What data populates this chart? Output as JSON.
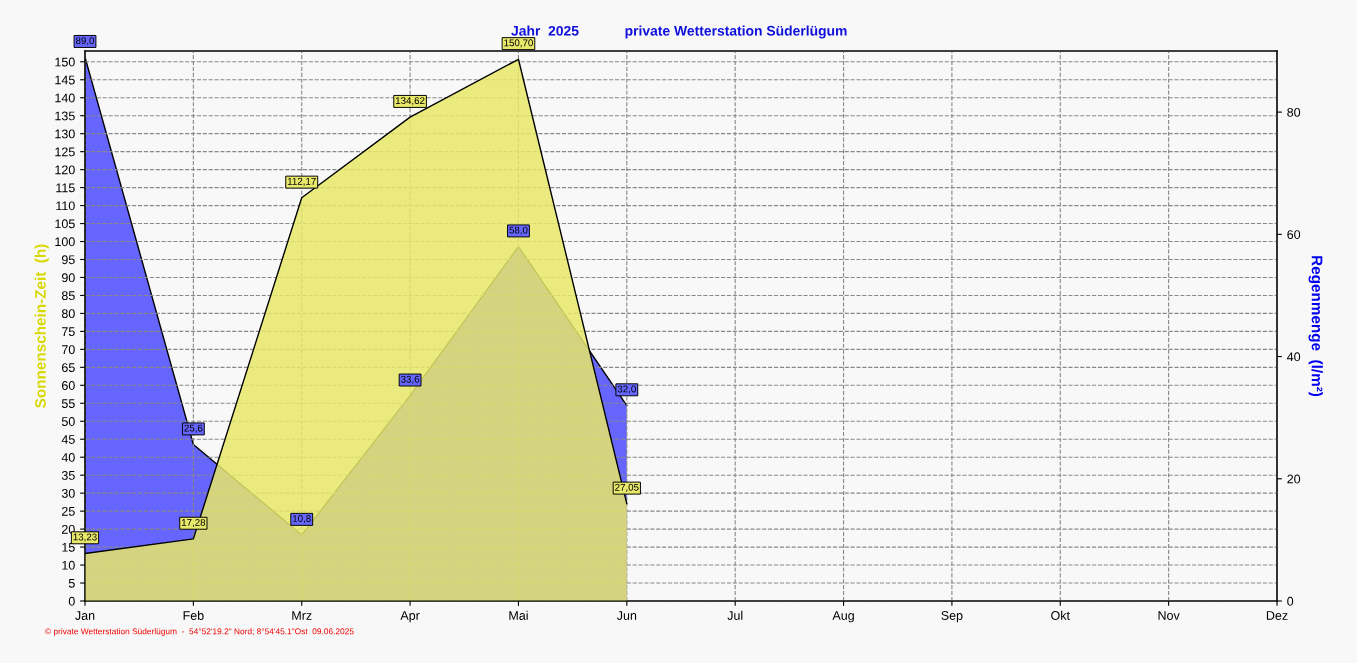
{
  "chart_data": {
    "type": "area",
    "title": "Jahr  2025",
    "subtitle": "private Wetterstation Süderlügum",
    "ylabel": "Sonnenschein-Zeit  (h)",
    "y2label": "Regenmenge  (l/m²)",
    "categories": [
      "Jan",
      "Feb",
      "Mrz",
      "Apr",
      "Mai",
      "Jun",
      "Jul",
      "Aug",
      "Sep",
      "Okt",
      "Nov",
      "Dez"
    ],
    "series": [
      {
        "name": null,
        "color": "#e8e86a",
        "values": [
          13.23,
          17.28,
          112.17,
          134.62,
          150.7,
          27.05,
          null,
          null,
          null,
          null,
          null,
          null
        ],
        "value_labels": [
          "13,23",
          "17,28",
          "112,17",
          "134,62",
          "150,70",
          "27,05",
          null,
          null,
          null,
          null,
          null,
          null
        ]
      },
      {
        "name": null,
        "color": "#6666ff",
        "axis": "y2",
        "values": [
          89.0,
          25.6,
          10.8,
          33.6,
          58.0,
          32.0,
          null,
          null,
          null,
          null,
          null,
          null
        ],
        "value_labels": [
          "89,0",
          "25,6",
          "10,8",
          "33,6",
          "58,0",
          "32,0",
          null,
          null,
          null,
          null,
          null,
          null
        ]
      }
    ],
    "ylim": [
      0,
      153
    ],
    "yticks": [
      0,
      5,
      10,
      15,
      20,
      25,
      30,
      35,
      40,
      45,
      50,
      55,
      60,
      65,
      70,
      75,
      80,
      85,
      90,
      95,
      100,
      105,
      110,
      115,
      120,
      125,
      130,
      135,
      140,
      145,
      150
    ],
    "y2lim": [
      0,
      90
    ],
    "y2ticks": [
      0,
      20,
      40,
      60,
      80
    ],
    "grid": true,
    "legend": false,
    "annotations": [
      "© private Wetterstation Süderlügum  -  54°52'19.2\" Nord; 8°54'45.1\"Ost  09.06.2025"
    ]
  }
}
